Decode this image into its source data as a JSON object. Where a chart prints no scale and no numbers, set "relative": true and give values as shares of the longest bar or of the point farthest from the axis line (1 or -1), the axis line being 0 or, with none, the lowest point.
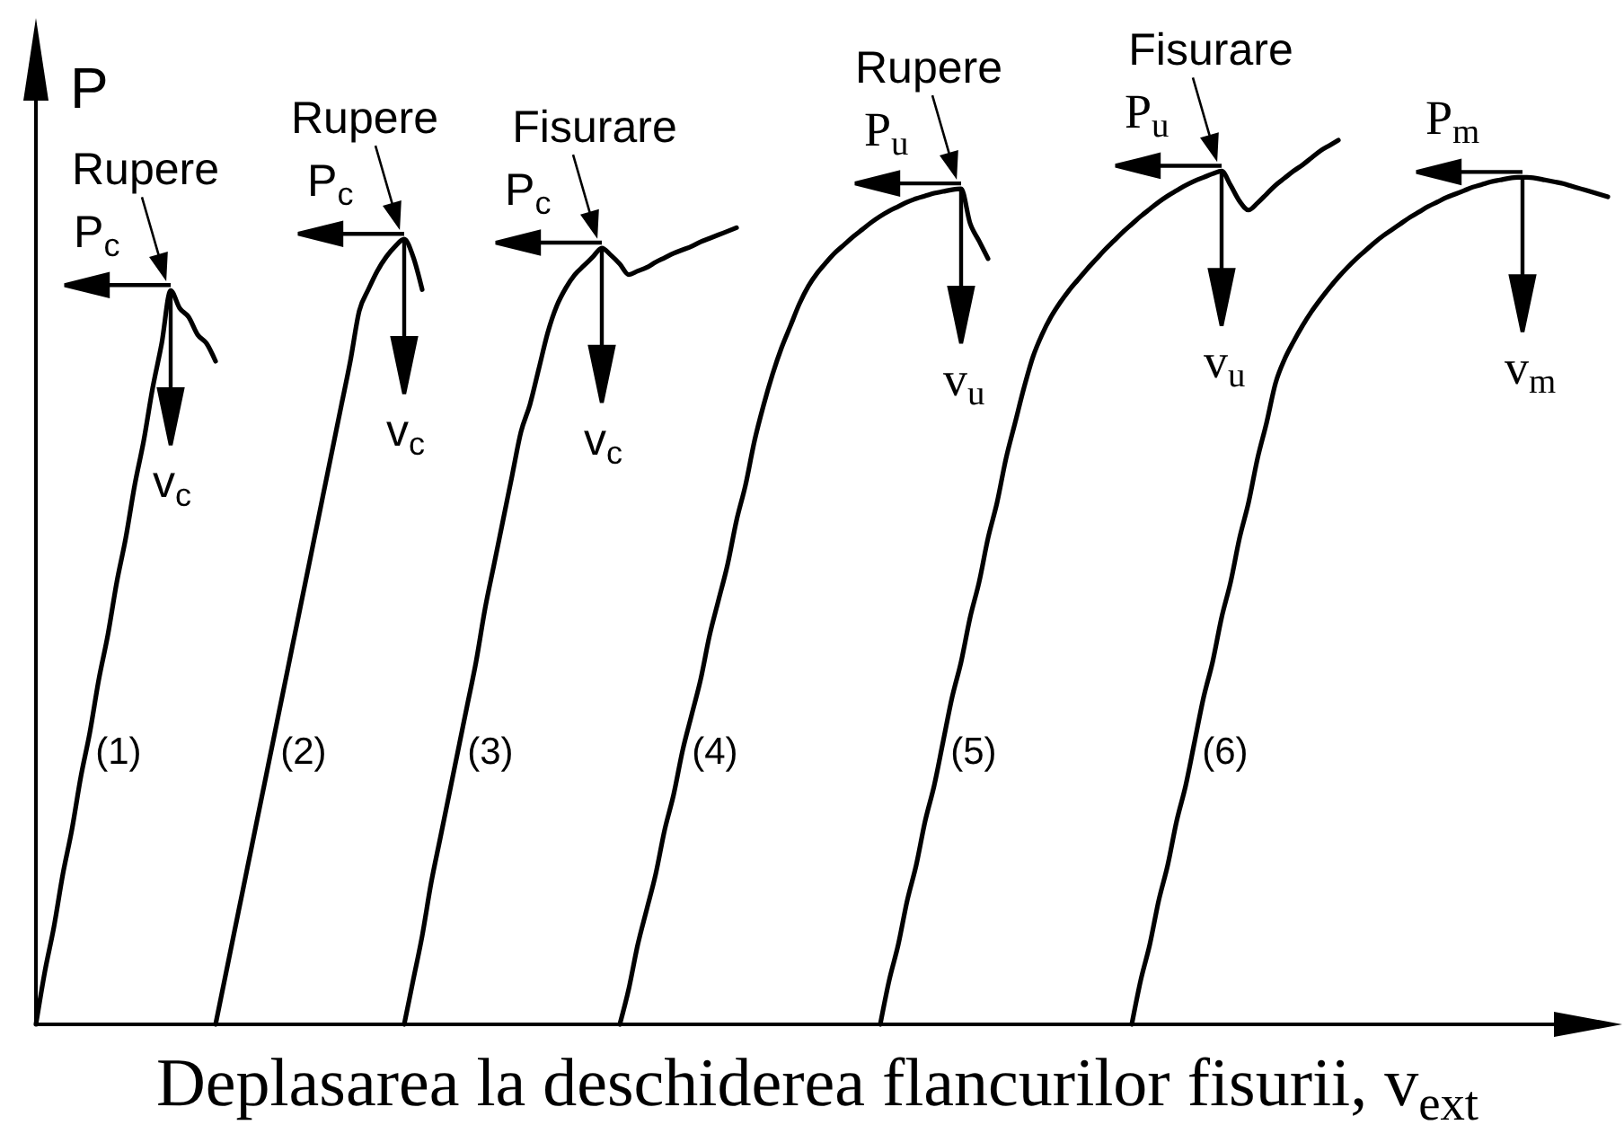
{
  "chart_data": {
    "type": "line",
    "relative": true,
    "ylabel": "P",
    "xlabel": "Deplasarea la deschiderea flancurilor fisurii, v$_{ext}$",
    "categories": [
      null,
      null,
      null,
      null,
      null,
      null,
      null,
      null,
      null,
      null,
      null,
      null,
      null,
      null,
      null,
      null,
      null,
      null,
      null,
      null,
      null,
      null,
      null,
      null,
      null,
      null,
      null,
      null,
      null,
      null,
      null,
      null,
      null,
      null,
      null,
      null,
      null,
      null,
      null,
      null,
      null,
      null,
      null,
      null,
      null,
      null,
      null,
      null,
      null,
      null,
      null,
      null,
      null,
      null,
      null,
      null,
      null,
      null,
      null,
      null,
      null,
      null,
      null,
      null,
      null,
      null,
      null,
      null,
      null,
      null,
      null,
      null,
      null,
      null,
      null,
      null,
      null,
      null,
      null,
      null,
      null,
      null,
      null,
      null,
      null,
      null,
      null,
      null,
      null,
      null,
      null,
      null,
      null,
      null,
      null,
      null,
      null,
      null,
      null,
      null,
      null,
      null,
      null,
      null,
      null,
      null,
      null,
      null,
      null,
      null,
      null,
      null,
      null,
      null,
      null,
      null,
      null,
      null,
      null,
      null,
      null,
      null,
      null,
      null,
      null,
      null,
      null,
      null,
      null,
      null,
      null,
      null,
      null,
      null,
      null,
      null,
      null,
      null,
      null,
      null,
      null,
      null,
      null,
      null,
      null,
      null,
      null,
      null,
      null,
      null,
      null,
      null,
      null,
      null,
      null,
      null,
      null,
      null,
      null,
      null,
      null,
      null,
      null,
      null,
      null,
      null,
      null,
      null,
      null,
      null,
      null,
      null,
      null,
      null,
      null,
      null
    ],
    "series": [
      {
        "name": "(1)",
        "color": "#000000",
        "values": [
          0,
          0.06,
          0.11,
          0.17,
          0.22,
          0.28,
          0.33,
          0.39,
          0.44,
          0.5,
          0.55,
          0.61,
          0.66,
          0.72,
          0.77,
          0.83,
          0.81,
          0.8,
          0.78,
          0.77,
          0.75,
          null,
          null,
          null,
          null,
          null,
          null,
          null,
          null,
          null,
          null,
          null,
          null,
          null,
          null,
          null,
          null,
          null,
          null,
          null,
          null,
          null,
          null,
          null,
          null,
          null,
          null,
          null,
          null,
          null,
          null,
          null,
          null,
          null,
          null,
          null,
          null,
          null,
          null,
          null,
          null,
          null,
          null,
          null,
          null,
          null,
          null,
          null,
          null,
          null,
          null,
          null,
          null,
          null,
          null,
          null,
          null,
          null,
          null,
          null,
          null,
          null,
          null,
          null,
          null,
          null,
          null,
          null,
          null,
          null,
          null,
          null,
          null,
          null,
          null,
          null,
          null,
          null,
          null,
          null,
          null,
          null,
          null,
          null,
          null,
          null,
          null,
          null,
          null,
          null,
          null,
          null,
          null,
          null,
          null,
          null,
          null,
          null,
          null,
          null,
          null,
          null,
          null,
          null,
          null,
          null,
          null,
          null,
          null,
          null,
          null,
          null,
          null,
          null,
          null,
          null,
          null,
          null,
          null,
          null,
          null,
          null,
          null,
          null,
          null,
          null,
          null,
          null,
          null,
          null,
          null,
          null,
          null,
          null,
          null,
          null,
          null,
          null,
          null,
          null,
          null,
          null,
          null,
          null,
          null,
          null,
          null,
          null,
          null,
          null,
          null,
          null,
          null,
          null,
          null,
          null
        ]
      },
      {
        "name": "(2)",
        "color": "#000000",
        "values": [
          null,
          null,
          null,
          null,
          null,
          null,
          null,
          null,
          null,
          null,
          null,
          null,
          null,
          null,
          null,
          null,
          null,
          null,
          null,
          null,
          0,
          0.05,
          0.1,
          0.15,
          0.2,
          0.25,
          0.3,
          0.35,
          0.4,
          0.45,
          0.5,
          0.55,
          0.6,
          0.65,
          0.7,
          0.75,
          0.807,
          0.831,
          0.852,
          0.868,
          0.88,
          0.888,
          0.868,
          0.831,
          null,
          null,
          null,
          null,
          null,
          null,
          null,
          null,
          null,
          null,
          null,
          null,
          null,
          null,
          null,
          null,
          null,
          null,
          null,
          null,
          null,
          null,
          null,
          null,
          null,
          null,
          null,
          null,
          null,
          null,
          null,
          null,
          null,
          null,
          null,
          null,
          null,
          null,
          null,
          null,
          null,
          null,
          null,
          null,
          null,
          null,
          null,
          null,
          null,
          null,
          null,
          null,
          null,
          null,
          null,
          null,
          null,
          null,
          null,
          null,
          null,
          null,
          null,
          null,
          null,
          null,
          null,
          null,
          null,
          null,
          null,
          null,
          null,
          null,
          null,
          null,
          null,
          null,
          null,
          null,
          null,
          null,
          null,
          null,
          null,
          null,
          null,
          null,
          null,
          null,
          null,
          null,
          null,
          null,
          null,
          null,
          null,
          null,
          null,
          null,
          null,
          null,
          null,
          null,
          null,
          null,
          null,
          null,
          null,
          null,
          null,
          null,
          null,
          null,
          null,
          null,
          null,
          null,
          null,
          null,
          null,
          null,
          null,
          null,
          null,
          null,
          null,
          null,
          null,
          null,
          null,
          null
        ]
      },
      {
        "name": "(3)",
        "color": "#000000",
        "values": [
          null,
          null,
          null,
          null,
          null,
          null,
          null,
          null,
          null,
          null,
          null,
          null,
          null,
          null,
          null,
          null,
          null,
          null,
          null,
          null,
          null,
          null,
          null,
          null,
          null,
          null,
          null,
          null,
          null,
          null,
          null,
          null,
          null,
          null,
          null,
          null,
          null,
          null,
          null,
          null,
          null,
          0,
          0.05,
          0.1,
          0.16,
          0.21,
          0.26,
          0.31,
          0.36,
          0.41,
          0.47,
          0.52,
          0.57,
          0.62,
          0.67,
          0.701,
          0.742,
          0.783,
          0.813,
          0.833,
          0.848,
          0.858,
          0.868,
          0.878,
          0.87,
          0.86,
          0.848,
          0.852,
          0.856,
          0.862,
          0.867,
          0.872,
          0.876,
          0.88,
          0.885,
          0.889,
          0.893,
          0.897,
          0.901,
          null,
          null,
          null,
          null,
          null,
          null,
          null,
          null,
          null,
          null,
          null,
          null,
          null,
          null,
          null,
          null,
          null,
          null,
          null,
          null,
          null,
          null,
          null,
          null,
          null,
          null,
          null,
          null,
          null,
          null,
          null,
          null,
          null,
          null,
          null,
          null,
          null,
          null,
          null,
          null,
          null,
          null,
          null,
          null,
          null,
          null,
          null,
          null,
          null,
          null,
          null,
          null,
          null,
          null,
          null,
          null,
          null,
          null,
          null,
          null,
          null,
          null,
          null,
          null,
          null,
          null,
          null,
          null,
          null,
          null,
          null,
          null,
          null,
          null,
          null,
          null,
          null,
          null,
          null,
          null,
          null,
          null,
          null,
          null,
          null,
          null,
          null,
          null,
          null,
          null,
          null,
          null,
          null,
          null,
          null,
          null,
          null
        ]
      },
      {
        "name": "(4)",
        "color": "#000000",
        "values": [
          null,
          null,
          null,
          null,
          null,
          null,
          null,
          null,
          null,
          null,
          null,
          null,
          null,
          null,
          null,
          null,
          null,
          null,
          null,
          null,
          null,
          null,
          null,
          null,
          null,
          null,
          null,
          null,
          null,
          null,
          null,
          null,
          null,
          null,
          null,
          null,
          null,
          null,
          null,
          null,
          null,
          null,
          null,
          null,
          null,
          null,
          null,
          null,
          null,
          null,
          null,
          null,
          null,
          null,
          null,
          null,
          null,
          null,
          null,
          null,
          null,
          null,
          null,
          null,
          null,
          0,
          0.04,
          0.09,
          0.13,
          0.17,
          0.22,
          0.26,
          0.31,
          0.35,
          0.39,
          0.44,
          0.48,
          0.52,
          0.57,
          0.61,
          0.66,
          0.7,
          0.735,
          0.765,
          0.79,
          0.815,
          0.835,
          0.85,
          0.862,
          0.873,
          0.882,
          0.891,
          0.899,
          0.907,
          0.914,
          0.92,
          0.925,
          0.93,
          0.934,
          0.937,
          0.94,
          0.942,
          0.944,
          0.945,
          0.906,
          0.886,
          0.866,
          null,
          null,
          null,
          null,
          null,
          null,
          null,
          null,
          null,
          null,
          null,
          null,
          null,
          null,
          null,
          null,
          null,
          null,
          null,
          null,
          null,
          null,
          null,
          null,
          null,
          null,
          null,
          null,
          null,
          null,
          null,
          null,
          null,
          null,
          null,
          null,
          null,
          null,
          null,
          null,
          null,
          null,
          null,
          null,
          null,
          null,
          null,
          null,
          null,
          null,
          null,
          null,
          null,
          null,
          null,
          null,
          null,
          null,
          null,
          null,
          null,
          null,
          null,
          null,
          null,
          null,
          null,
          null,
          null
        ]
      },
      {
        "name": "(5)",
        "color": "#000000",
        "values": [
          null,
          null,
          null,
          null,
          null,
          null,
          null,
          null,
          null,
          null,
          null,
          null,
          null,
          null,
          null,
          null,
          null,
          null,
          null,
          null,
          null,
          null,
          null,
          null,
          null,
          null,
          null,
          null,
          null,
          null,
          null,
          null,
          null,
          null,
          null,
          null,
          null,
          null,
          null,
          null,
          null,
          null,
          null,
          null,
          null,
          null,
          null,
          null,
          null,
          null,
          null,
          null,
          null,
          null,
          null,
          null,
          null,
          null,
          null,
          null,
          null,
          null,
          null,
          null,
          null,
          null,
          null,
          null,
          null,
          null,
          null,
          null,
          null,
          null,
          null,
          null,
          null,
          null,
          null,
          null,
          null,
          null,
          null,
          null,
          null,
          null,
          null,
          null,
          null,
          null,
          null,
          null,
          null,
          null,
          0,
          0.05,
          0.09,
          0.14,
          0.18,
          0.23,
          0.27,
          0.32,
          0.37,
          0.41,
          0.46,
          0.5,
          0.55,
          0.59,
          0.64,
          0.68,
          0.72,
          0.755,
          0.78,
          0.8,
          0.816,
          0.83,
          0.842,
          0.854,
          0.865,
          0.876,
          0.886,
          0.896,
          0.905,
          0.914,
          0.922,
          0.93,
          0.937,
          0.943,
          0.949,
          0.954,
          0.958,
          0.962,
          0.965,
          0.949,
          0.931,
          0.921,
          0.929,
          0.939,
          0.949,
          0.957,
          0.965,
          0.972,
          0.98,
          0.988,
          0.994,
          1,
          null,
          null,
          null,
          null,
          null,
          null,
          null,
          null,
          null,
          null,
          null,
          null,
          null,
          null,
          null,
          null,
          null,
          null,
          null,
          null,
          null,
          null,
          null,
          null,
          null,
          null,
          null,
          null,
          null,
          null
        ]
      },
      {
        "name": "(6)",
        "color": "#000000",
        "values": [
          null,
          null,
          null,
          null,
          null,
          null,
          null,
          null,
          null,
          null,
          null,
          null,
          null,
          null,
          null,
          null,
          null,
          null,
          null,
          null,
          null,
          null,
          null,
          null,
          null,
          null,
          null,
          null,
          null,
          null,
          null,
          null,
          null,
          null,
          null,
          null,
          null,
          null,
          null,
          null,
          null,
          null,
          null,
          null,
          null,
          null,
          null,
          null,
          null,
          null,
          null,
          null,
          null,
          null,
          null,
          null,
          null,
          null,
          null,
          null,
          null,
          null,
          null,
          null,
          null,
          null,
          null,
          null,
          null,
          null,
          null,
          null,
          null,
          null,
          null,
          null,
          null,
          null,
          null,
          null,
          null,
          null,
          null,
          null,
          null,
          null,
          null,
          null,
          null,
          null,
          null,
          null,
          null,
          null,
          null,
          null,
          null,
          null,
          null,
          null,
          null,
          null,
          null,
          null,
          null,
          null,
          null,
          null,
          null,
          null,
          null,
          null,
          null,
          null,
          null,
          null,
          null,
          null,
          null,
          null,
          null,
          null,
          0,
          0.05,
          0.09,
          0.14,
          0.18,
          0.23,
          0.27,
          0.32,
          0.37,
          0.41,
          0.46,
          0.5,
          0.55,
          0.59,
          0.64,
          0.68,
          0.725,
          0.752,
          0.772,
          0.79,
          0.806,
          0.82,
          0.833,
          0.845,
          0.856,
          0.866,
          0.875,
          0.884,
          0.892,
          0.899,
          0.906,
          0.913,
          0.919,
          0.925,
          0.93,
          0.935,
          0.939,
          0.943,
          0.947,
          0.95,
          0.953,
          0.955,
          0.957,
          0.958,
          0.958,
          0.957,
          0.955,
          0.953,
          0.951,
          0.948,
          0.945,
          0.942,
          0.939,
          0.936
        ]
      }
    ],
    "annotations": [
      "Rupere",
      "P$_{c}$",
      "v$_{c}$",
      "Rupere",
      "P$_{c}$",
      "v$_{c}$",
      "Fisurare",
      "P$_{c}$",
      "v$_{c}$",
      "Rupere",
      "P$_{u}$",
      "v$_{u}$",
      "Fisurare",
      "P$_{u}$",
      "v$_{u}$",
      "P$_{m}$",
      "v$_{m}$"
    ]
  }
}
